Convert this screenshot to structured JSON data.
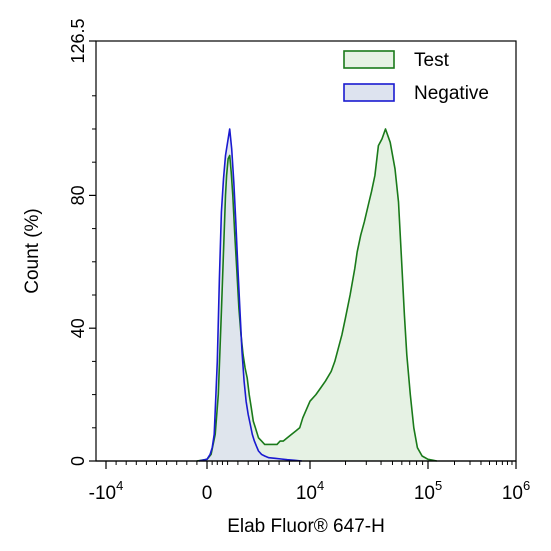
{
  "chart_data": {
    "type": "area",
    "title": "",
    "xlabel": "Elab Fluor® 647-H",
    "ylabel": "Count  (%)",
    "xscale": "biexponential",
    "ylim": [
      0,
      126.5
    ],
    "y_ticks": [
      "0",
      "40",
      "80",
      "126.5"
    ],
    "x_ticks": [
      {
        "base": "-10",
        "exp": "4"
      },
      {
        "base": "0",
        "exp": ""
      },
      {
        "base": "10",
        "exp": "4"
      },
      {
        "base": "10",
        "exp": "5"
      },
      {
        "base": "10",
        "exp": "6"
      }
    ],
    "grid": false,
    "legend_position": "top-right",
    "series": [
      {
        "name": "Test",
        "color": "#1a7a1a",
        "fill": "#e6f2e4",
        "points": [
          [
            -0.1,
            0
          ],
          [
            0.0,
            0.5
          ],
          [
            0.04,
            2
          ],
          [
            0.08,
            8
          ],
          [
            0.11,
            20
          ],
          [
            0.14,
            45
          ],
          [
            0.16,
            63
          ],
          [
            0.18,
            80
          ],
          [
            0.19,
            86
          ],
          [
            0.205,
            91
          ],
          [
            0.22,
            92
          ],
          [
            0.235,
            87
          ],
          [
            0.25,
            80
          ],
          [
            0.27,
            68
          ],
          [
            0.29,
            57
          ],
          [
            0.31,
            46
          ],
          [
            0.33,
            38
          ],
          [
            0.35,
            32
          ],
          [
            0.37,
            28
          ],
          [
            0.39,
            25
          ],
          [
            0.41,
            20
          ],
          [
            0.43,
            16
          ],
          [
            0.45,
            12
          ],
          [
            0.47,
            10
          ],
          [
            0.5,
            7
          ],
          [
            0.53,
            6
          ],
          [
            0.56,
            5
          ],
          [
            0.6,
            5
          ],
          [
            0.64,
            5
          ],
          [
            0.68,
            5
          ],
          [
            0.71,
            6
          ],
          [
            0.74,
            6
          ],
          [
            0.78,
            7
          ],
          [
            0.82,
            8
          ],
          [
            0.86,
            9
          ],
          [
            0.9,
            10
          ],
          [
            0.93,
            13
          ],
          [
            1.0,
            18
          ],
          [
            1.05,
            20
          ],
          [
            1.09,
            22
          ],
          [
            1.13,
            24
          ],
          [
            1.18,
            27
          ],
          [
            1.21,
            30
          ],
          [
            1.27,
            38
          ],
          [
            1.3,
            43
          ],
          [
            1.34,
            50
          ],
          [
            1.38,
            58
          ],
          [
            1.4,
            63
          ],
          [
            1.43,
            68
          ],
          [
            1.46,
            72
          ],
          [
            1.5,
            78
          ],
          [
            1.52,
            81
          ],
          [
            1.55,
            86
          ],
          [
            1.58,
            95
          ],
          [
            1.61,
            97
          ],
          [
            1.64,
            100
          ],
          [
            1.68,
            96
          ],
          [
            1.72,
            88
          ],
          [
            1.75,
            78
          ],
          [
            1.78,
            58
          ],
          [
            1.8,
            44
          ],
          [
            1.82,
            32
          ],
          [
            1.85,
            20
          ],
          [
            1.88,
            10
          ],
          [
            1.91,
            4
          ],
          [
            1.95,
            1.5
          ],
          [
            2.0,
            0.5
          ],
          [
            2.06,
            0.2
          ],
          [
            2.1,
            0
          ]
        ]
      },
      {
        "name": "Negative",
        "color": "#1a1ad0",
        "fill": "#dde3ef",
        "points": [
          [
            -0.08,
            0
          ],
          [
            0.0,
            0.5
          ],
          [
            0.03,
            2
          ],
          [
            0.05,
            4
          ],
          [
            0.07,
            8
          ],
          [
            0.08,
            15
          ],
          [
            0.1,
            30
          ],
          [
            0.12,
            55
          ],
          [
            0.14,
            75
          ],
          [
            0.16,
            85
          ],
          [
            0.18,
            92
          ],
          [
            0.2,
            96
          ],
          [
            0.22,
            100
          ],
          [
            0.24,
            94
          ],
          [
            0.26,
            84
          ],
          [
            0.28,
            72
          ],
          [
            0.3,
            58
          ],
          [
            0.32,
            45
          ],
          [
            0.34,
            33
          ],
          [
            0.36,
            24
          ],
          [
            0.38,
            18
          ],
          [
            0.4,
            14
          ],
          [
            0.42,
            11
          ],
          [
            0.44,
            8
          ],
          [
            0.46,
            6
          ],
          [
            0.48,
            4.5
          ],
          [
            0.5,
            3
          ],
          [
            0.53,
            2
          ],
          [
            0.56,
            1.5
          ],
          [
            0.6,
            1
          ],
          [
            0.66,
            0.8
          ],
          [
            0.72,
            0.6
          ],
          [
            0.78,
            0.4
          ],
          [
            0.85,
            0.2
          ],
          [
            0.92,
            0
          ]
        ]
      }
    ]
  }
}
